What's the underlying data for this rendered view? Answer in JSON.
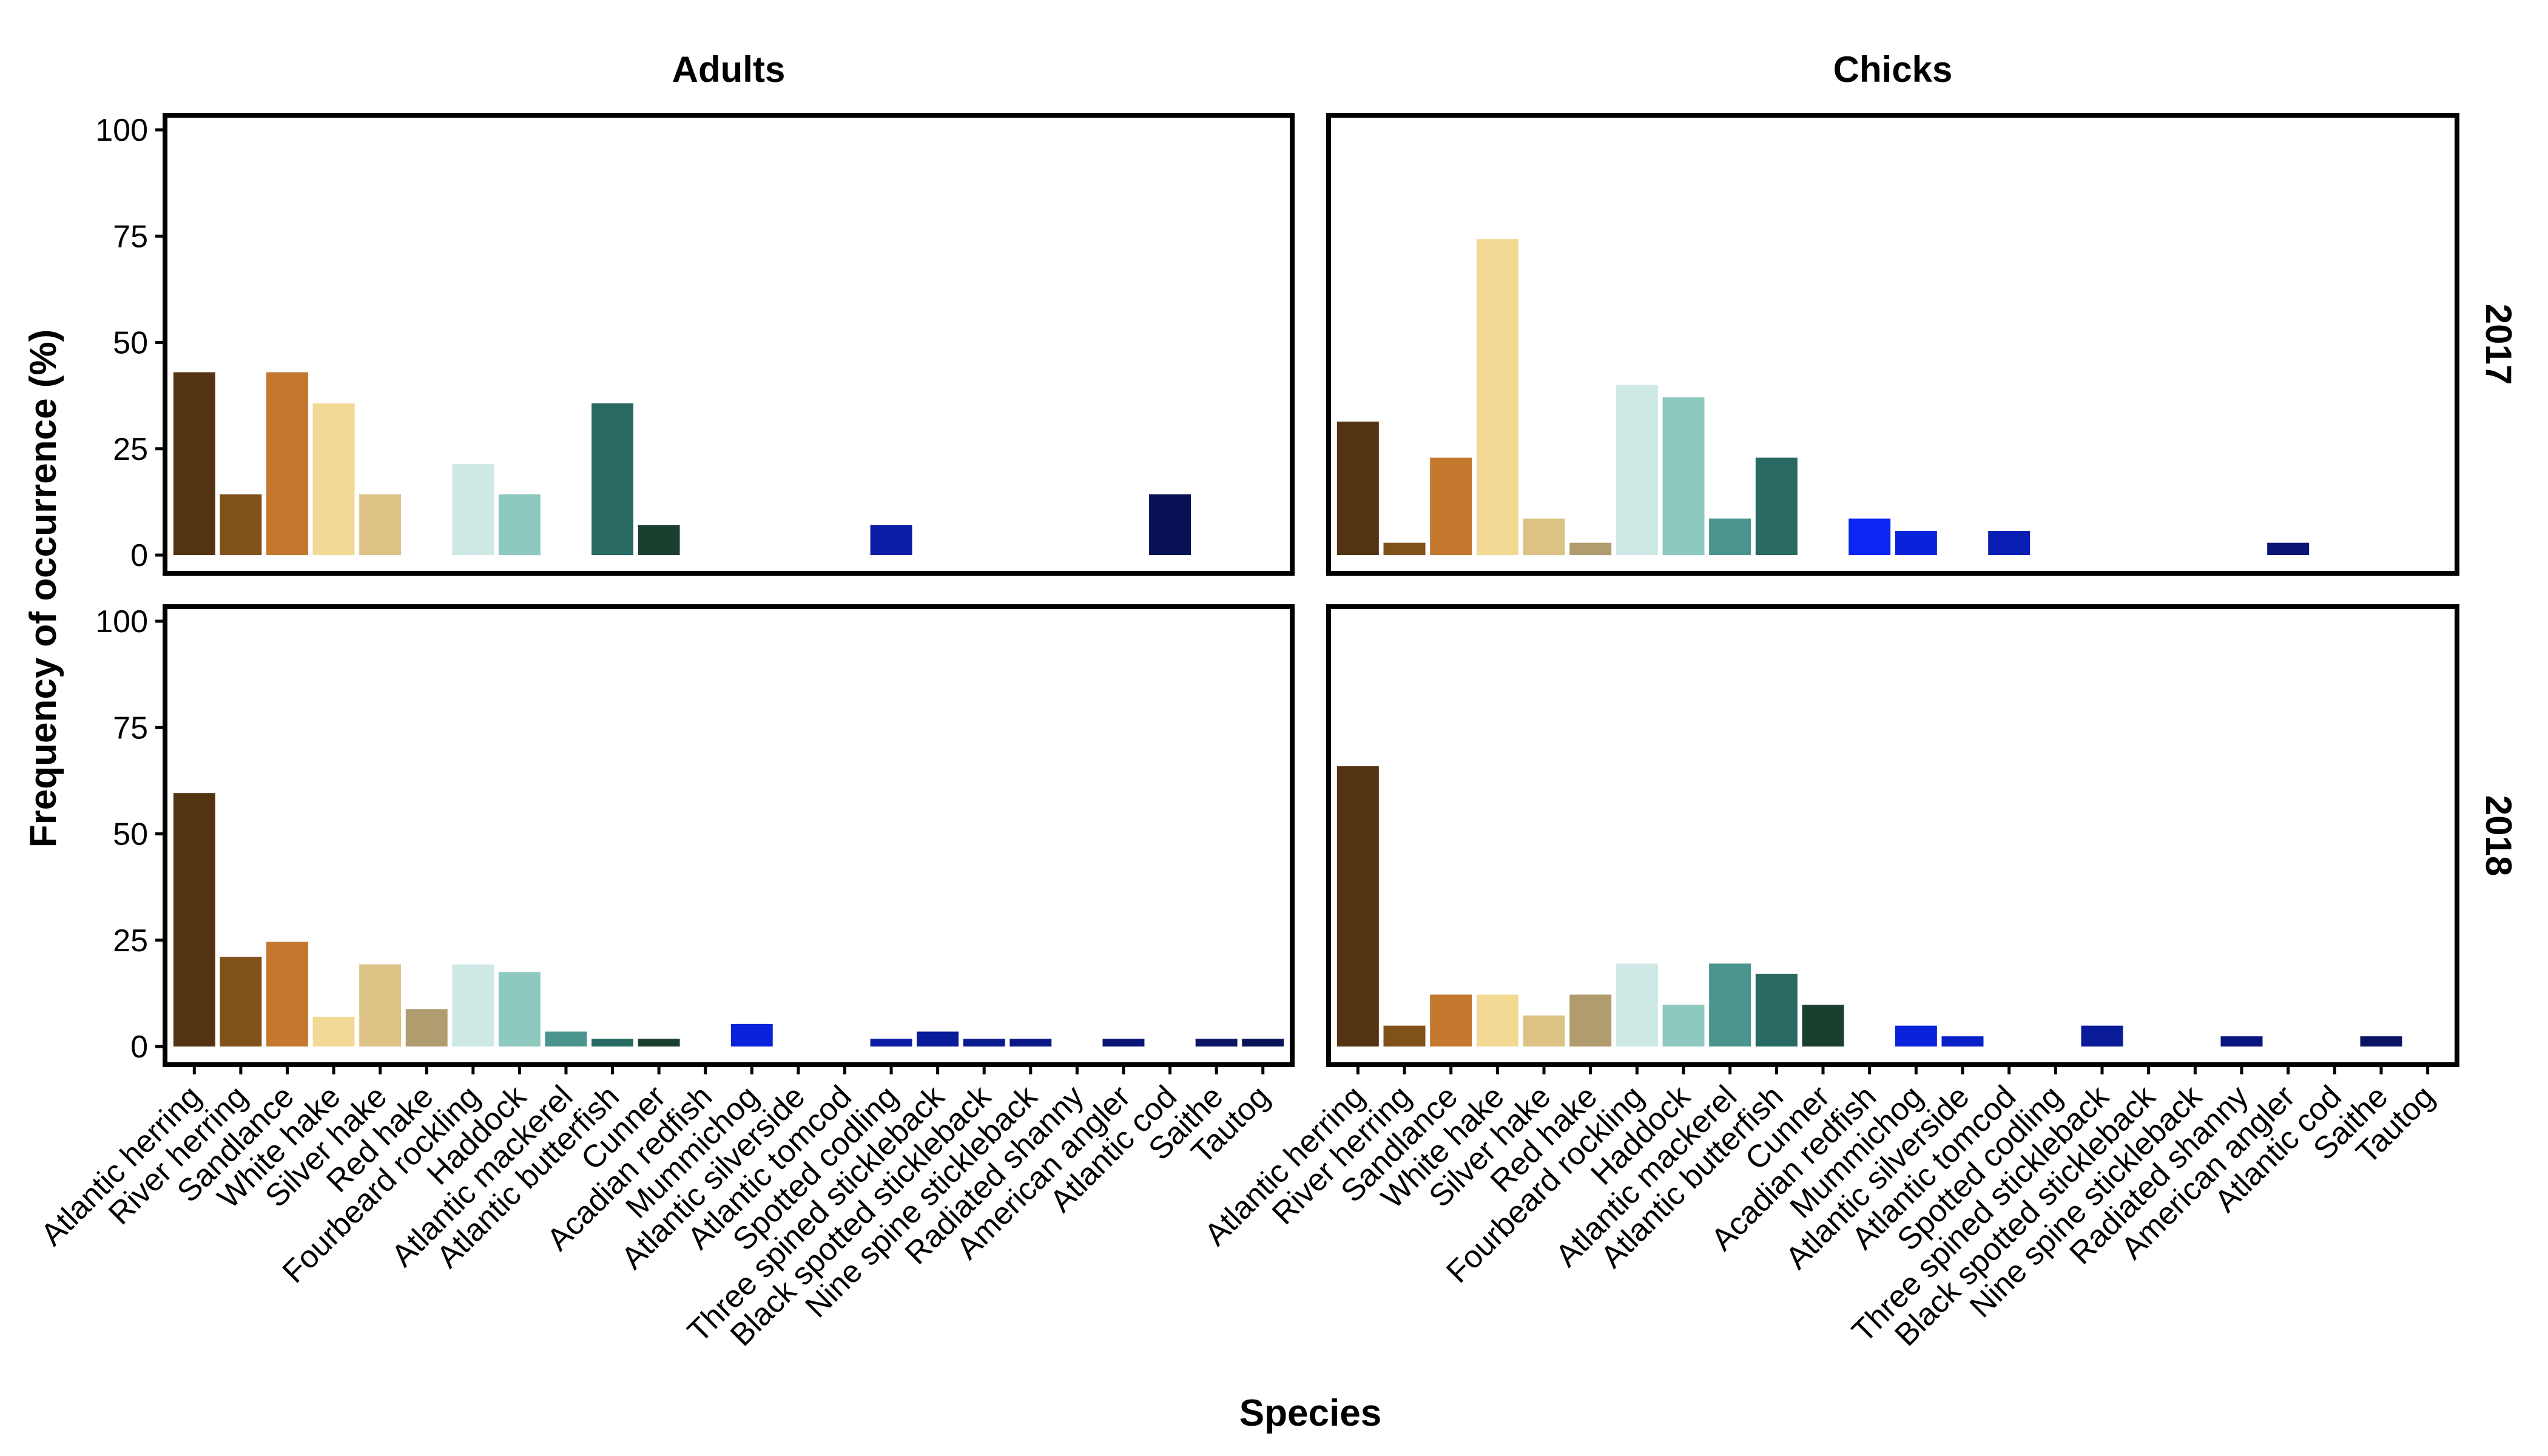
{
  "chart_data": {
    "type": "bar",
    "xlabel": "Species",
    "ylabel": "Frequency of occurrence (%)",
    "ylim": [
      0,
      100
    ],
    "yticks": [
      0,
      25,
      50,
      75,
      100
    ],
    "grid": false,
    "legend": "none",
    "columns": [
      "Adults",
      "Chicks"
    ],
    "rows": [
      "2017",
      "2018"
    ],
    "categories": [
      "Atlantic herring",
      "River herring",
      "Sandlance",
      "White hake",
      "Silver hake",
      "Red hake",
      "Fourbeard rockling",
      "Haddock",
      "Atlantic mackerel",
      "Atlantic butterfish",
      "Cunner",
      "Acadian redfish",
      "Mummichog",
      "Atlantic silverside",
      "Atlantic tomcod",
      "Spotted codling",
      "Three spined stickleback",
      "Black spotted stickleback",
      "Nine spine stickleback",
      "Radiated shanny",
      "American angler",
      "Atlantic cod",
      "Saithe",
      "Tautog"
    ],
    "colors": [
      "#533311",
      "#80521A",
      "#C3782E",
      "#F2D994",
      "#DCC284",
      "#B09C6E",
      "#CDE8E5",
      "#8EC9BF",
      "#4A958E",
      "#286A62",
      "#1A3F2F",
      "#0B25F2",
      "#0A23DA",
      "#0921C6",
      "#0A1EB3",
      "#0B1DA4",
      "#0A1B99",
      "#0A1A8F",
      "#0B1987",
      "#0A177F",
      "#0A1676",
      "#071153",
      "#0B1566",
      "#0B1358"
    ],
    "panels": [
      {
        "row": "2017",
        "col": "Adults",
        "values": [
          43,
          14.3,
          43,
          35.7,
          14.3,
          0,
          21.4,
          14.3,
          0,
          35.7,
          7.1,
          0,
          0,
          0,
          0,
          7.1,
          0,
          0,
          0,
          0,
          0,
          14.3,
          0,
          0
        ]
      },
      {
        "row": "2017",
        "col": "Chicks",
        "values": [
          31.4,
          2.9,
          22.9,
          74.3,
          8.6,
          2.9,
          40,
          37.1,
          8.6,
          22.9,
          0,
          8.6,
          5.7,
          0,
          5.7,
          0,
          0,
          0,
          0,
          0,
          2.9,
          0,
          0,
          0
        ]
      },
      {
        "row": "2018",
        "col": "Adults",
        "values": [
          59.6,
          21.1,
          24.6,
          7,
          19.3,
          8.8,
          19.3,
          17.5,
          3.5,
          1.8,
          1.8,
          0,
          5.3,
          0,
          0,
          1.8,
          3.5,
          1.8,
          1.8,
          0,
          1.8,
          0,
          1.8,
          1.8
        ]
      },
      {
        "row": "2018",
        "col": "Chicks",
        "values": [
          65.9,
          4.9,
          12.2,
          12.2,
          7.3,
          12.2,
          19.5,
          9.8,
          19.5,
          17.1,
          9.8,
          0,
          4.9,
          2.4,
          0,
          0,
          4.9,
          0,
          0,
          2.4,
          0,
          0,
          2.4,
          0
        ]
      }
    ]
  }
}
